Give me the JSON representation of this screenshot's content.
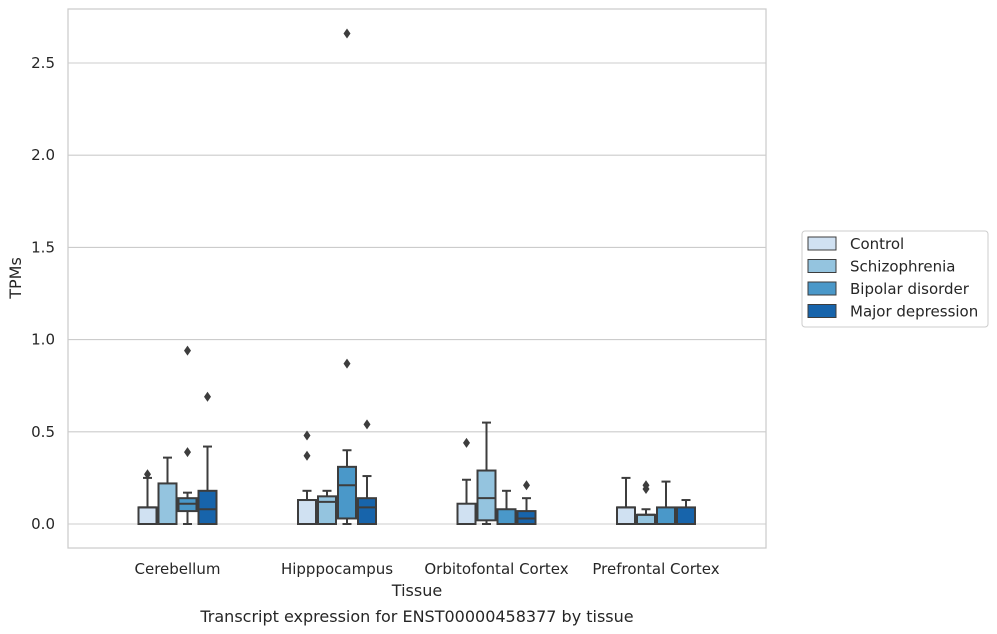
{
  "chart_data": {
    "type": "box",
    "title": "",
    "caption": "Transcript expression for ENST00000458377 by tissue",
    "xlabel": "Tissue",
    "ylabel": "TPMs",
    "ylim": [
      -0.13,
      2.8
    ],
    "yticks": [
      0.0,
      0.5,
      1.0,
      1.5,
      2.0,
      2.5
    ],
    "ytick_labels": [
      "0.0",
      "0.5",
      "1.0",
      "1.5",
      "2.0",
      "2.5"
    ],
    "grid": true,
    "legend_placement": "right",
    "categories": [
      "Cerebellum",
      "Hipppocampus",
      "Orbitofontal Cortex",
      "Prefrontal Cortex"
    ],
    "series": [
      {
        "name": "Control",
        "color": "#d0e1f2",
        "boxes": [
          {
            "whisker_low": 0.0,
            "q1": 0.0,
            "median": 0.09,
            "q3": 0.09,
            "whisker_high": 0.25,
            "outliers": [
              0.27
            ]
          },
          {
            "whisker_low": 0.0,
            "q1": 0.0,
            "median": 0.13,
            "q3": 0.13,
            "whisker_high": 0.18,
            "outliers": [
              0.37,
              0.48
            ]
          },
          {
            "whisker_low": 0.0,
            "q1": 0.0,
            "median": 0.0,
            "q3": 0.11,
            "whisker_high": 0.24,
            "outliers": [
              0.44
            ]
          },
          {
            "whisker_low": 0.0,
            "q1": 0.0,
            "median": 0.09,
            "q3": 0.09,
            "whisker_high": 0.25,
            "outliers": []
          }
        ]
      },
      {
        "name": "Schizophrenia",
        "color": "#94c4df",
        "boxes": [
          {
            "whisker_low": 0.0,
            "q1": 0.0,
            "median": 0.0,
            "q3": 0.22,
            "whisker_high": 0.36,
            "outliers": []
          },
          {
            "whisker_low": 0.0,
            "q1": 0.0,
            "median": 0.12,
            "q3": 0.15,
            "whisker_high": 0.18,
            "outliers": []
          },
          {
            "whisker_low": 0.0,
            "q1": 0.02,
            "median": 0.14,
            "q3": 0.29,
            "whisker_high": 0.55,
            "outliers": []
          },
          {
            "whisker_low": 0.0,
            "q1": 0.0,
            "median": 0.05,
            "q3": 0.05,
            "whisker_high": 0.08,
            "outliers": [
              0.19,
              0.21
            ]
          }
        ]
      },
      {
        "name": "Bipolar disorder",
        "color": "#4a98c9",
        "boxes": [
          {
            "whisker_low": 0.0,
            "q1": 0.07,
            "median": 0.11,
            "q3": 0.14,
            "whisker_high": 0.17,
            "outliers": [
              0.39,
              0.94
            ]
          },
          {
            "whisker_low": 0.0,
            "q1": 0.03,
            "median": 0.21,
            "q3": 0.31,
            "whisker_high": 0.4,
            "outliers": [
              0.87,
              2.66
            ]
          },
          {
            "whisker_low": 0.0,
            "q1": 0.0,
            "median": 0.0,
            "q3": 0.08,
            "whisker_high": 0.18,
            "outliers": []
          },
          {
            "whisker_low": 0.0,
            "q1": 0.0,
            "median": 0.0,
            "q3": 0.09,
            "whisker_high": 0.23,
            "outliers": []
          }
        ]
      },
      {
        "name": "Major depression",
        "color": "#1764ab",
        "boxes": [
          {
            "whisker_low": 0.0,
            "q1": 0.0,
            "median": 0.08,
            "q3": 0.18,
            "whisker_high": 0.42,
            "outliers": [
              0.69
            ]
          },
          {
            "whisker_low": 0.0,
            "q1": 0.0,
            "median": 0.09,
            "q3": 0.14,
            "whisker_high": 0.26,
            "outliers": [
              0.54
            ]
          },
          {
            "whisker_low": 0.0,
            "q1": 0.0,
            "median": 0.03,
            "q3": 0.07,
            "whisker_high": 0.14,
            "outliers": [
              0.21
            ]
          },
          {
            "whisker_low": 0.0,
            "q1": 0.0,
            "median": 0.0,
            "q3": 0.09,
            "whisker_high": 0.13,
            "outliers": []
          }
        ]
      }
    ]
  }
}
